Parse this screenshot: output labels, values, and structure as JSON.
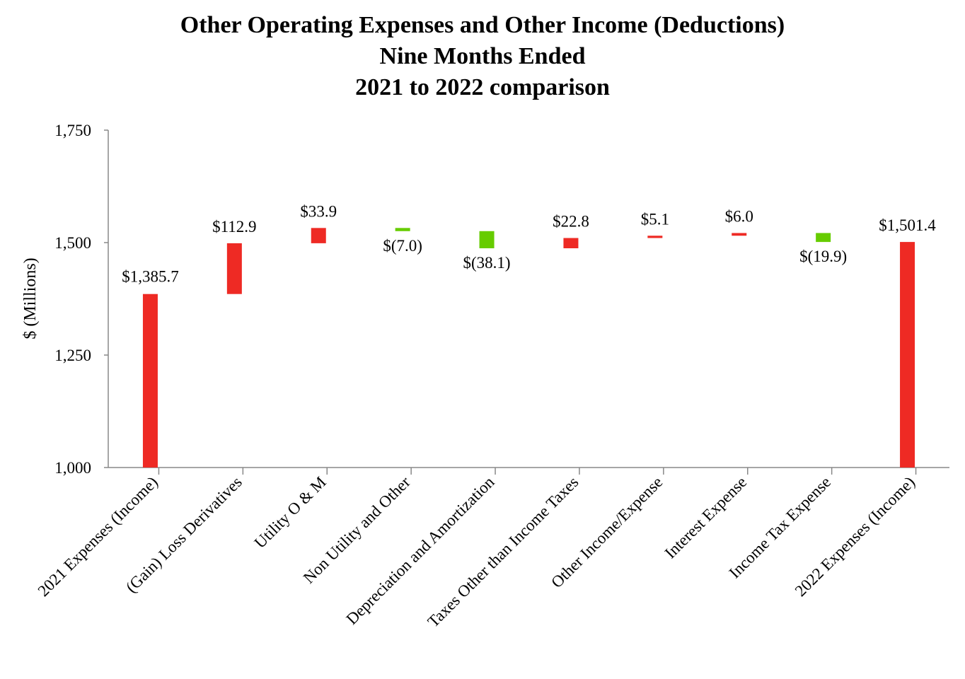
{
  "chart_data": {
    "type": "bar",
    "subtype": "waterfall",
    "title_lines": [
      "Other Operating Expenses and Other Income (Deductions)",
      "Nine Months Ended",
      "2021 to 2022 comparison"
    ],
    "ylabel": "$ (Millions)",
    "ylim": [
      1000,
      1750
    ],
    "yticks": [
      1000,
      1250,
      1500,
      1750
    ],
    "ytick_labels": [
      "1,000",
      "1,250",
      "1,500",
      "1,750"
    ],
    "grid": false,
    "legend": "none",
    "colors": {
      "increase": "#EE2A24",
      "decrease": "#66CC00",
      "total": "#EE2A24"
    },
    "categories": [
      "2021 Expenses (Income)",
      "(Gain) Loss Derivatives",
      "Utility O & M",
      "Non Utility and Other",
      "Depreciation and Amortization",
      "Taxes Other than Income Taxes",
      "Other Income/Expense",
      "Interest Expense",
      "Income Tax Expense",
      "2022 Expenses (Income)"
    ],
    "values": [
      1385.7,
      112.9,
      33.9,
      -7.0,
      -38.1,
      22.8,
      5.1,
      6.0,
      -19.9,
      1501.4
    ],
    "measures": [
      "total",
      "relative",
      "relative",
      "relative",
      "relative",
      "relative",
      "relative",
      "relative",
      "relative",
      "total"
    ],
    "data_labels": [
      "$1,385.7",
      "$112.9",
      "$33.9",
      "$(7.0)",
      "$(38.1)",
      "$22.8",
      "$5.1",
      "$6.0",
      "$(19.9)",
      "$1,501.4"
    ]
  }
}
